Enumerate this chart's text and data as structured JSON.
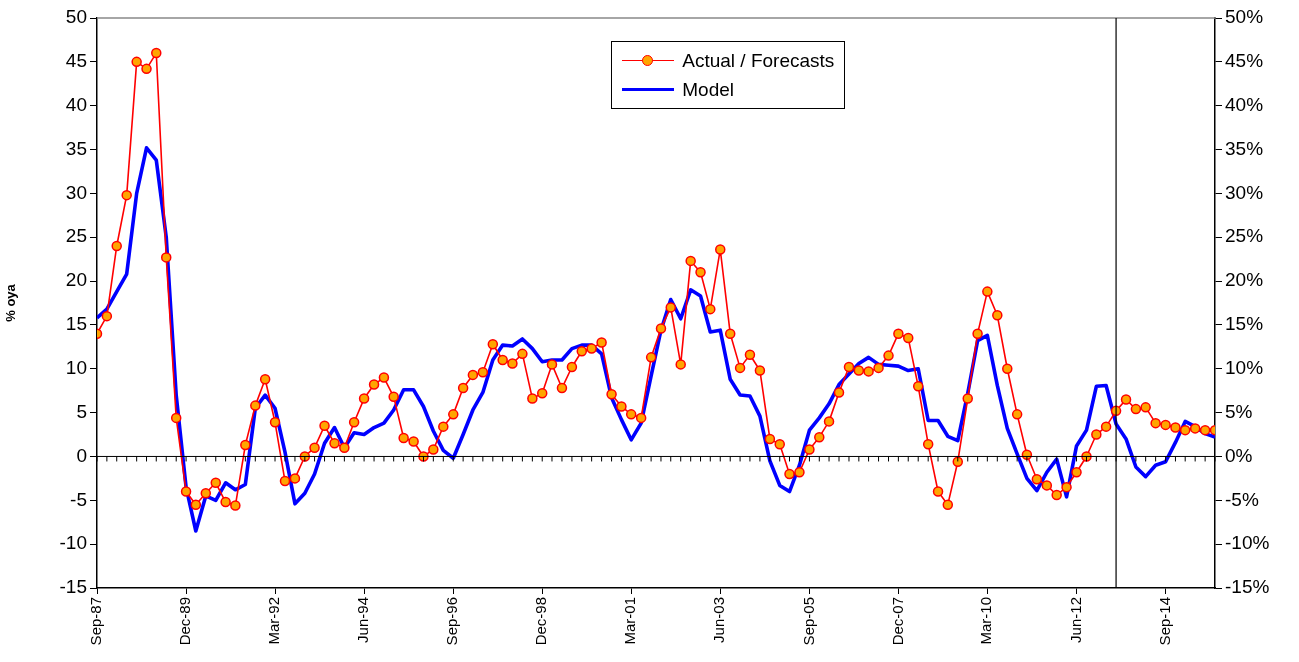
{
  "chart_data": {
    "type": "line",
    "ylabel": "% oya",
    "x": [
      "1987-09",
      "1987-12",
      "1988-03",
      "1988-06",
      "1988-09",
      "1988-12",
      "1989-03",
      "1989-06",
      "1989-09",
      "1989-12",
      "1990-03",
      "1990-06",
      "1990-09",
      "1990-12",
      "1991-03",
      "1991-06",
      "1991-09",
      "1991-12",
      "1992-03",
      "1992-06",
      "1992-09",
      "1992-12",
      "1993-03",
      "1993-06",
      "1993-09",
      "1993-12",
      "1994-03",
      "1994-06",
      "1994-09",
      "1994-12",
      "1995-03",
      "1995-06",
      "1995-09",
      "1995-12",
      "1996-03",
      "1996-06",
      "1996-09",
      "1996-12",
      "1997-03",
      "1997-06",
      "1997-09",
      "1997-12",
      "1998-03",
      "1998-06",
      "1998-09",
      "1998-12",
      "1999-03",
      "1999-06",
      "1999-09",
      "1999-12",
      "2000-03",
      "2000-06",
      "2000-09",
      "2000-12",
      "2001-03",
      "2001-06",
      "2001-09",
      "2001-12",
      "2002-03",
      "2002-06",
      "2002-09",
      "2002-12",
      "2003-03",
      "2003-06",
      "2003-09",
      "2003-12",
      "2004-03",
      "2004-06",
      "2004-09",
      "2004-12",
      "2005-03",
      "2005-06",
      "2005-09",
      "2005-12",
      "2006-03",
      "2006-06",
      "2006-09",
      "2006-12",
      "2007-03",
      "2007-06",
      "2007-09",
      "2007-12",
      "2008-03",
      "2008-06",
      "2008-09",
      "2008-12",
      "2009-03",
      "2009-06",
      "2009-09",
      "2009-12",
      "2010-03",
      "2010-06",
      "2010-09",
      "2010-12",
      "2011-03",
      "2011-06",
      "2011-09",
      "2011-12",
      "2012-03",
      "2012-06",
      "2012-09",
      "2012-12",
      "2013-03",
      "2013-06",
      "2013-09",
      "2013-12",
      "2014-03",
      "2014-06",
      "2014-09",
      "2014-12",
      "2015-03",
      "2015-06",
      "2015-09",
      "2015-12"
    ],
    "series": [
      {
        "name": "Actual / Forecasts",
        "color": "#ff0000",
        "marker": "circle",
        "values": [
          14,
          16,
          24,
          29.8,
          45,
          44.2,
          46,
          22.7,
          4.4,
          -4,
          -5.5,
          -4.2,
          -3,
          -5.2,
          -5.6,
          1.3,
          5.8,
          8.8,
          3.9,
          -2.8,
          -2.5,
          0,
          1,
          3.5,
          1.5,
          1,
          3.9,
          6.6,
          8.2,
          9,
          6.8,
          2.1,
          1.7,
          0,
          0.8,
          3.4,
          4.8,
          7.8,
          9.3,
          9.6,
          12.8,
          11,
          10.6,
          11.7,
          6.6,
          7.2,
          10.5,
          7.8,
          10.2,
          12,
          12.3,
          13,
          7.1,
          5.7,
          4.8,
          4.4,
          11.3,
          14.6,
          17,
          10.5,
          22.3,
          21,
          16.8,
          23.6,
          14,
          10.1,
          11.6,
          9.8,
          2,
          1.4,
          -2,
          -1.8,
          0.8,
          2.2,
          4,
          7.3,
          10.2,
          9.8,
          9.7,
          10.1,
          11.5,
          14,
          13.5,
          8,
          1.4,
          -4,
          -5.5,
          -0.6,
          6.6,
          14,
          18.8,
          16.1,
          10,
          4.8,
          0.2,
          -2.6,
          -3.3,
          -4.4,
          -3.5,
          -1.8,
          0,
          2.5,
          3.4,
          5.2,
          6.5,
          5.4,
          5.6,
          3.8,
          3.6,
          3.3,
          3,
          3.2,
          3,
          3
        ]
      },
      {
        "name": "Model",
        "color": "#0000ff",
        "marker": "none",
        "values": [
          15.8,
          16.8,
          18.8,
          20.8,
          30,
          35.2,
          33.8,
          25,
          7,
          -3.5,
          -8.5,
          -4.5,
          -5,
          -3,
          -3.8,
          -3.2,
          5.5,
          7,
          5.5,
          0.5,
          -5.4,
          -4.2,
          -2,
          1.5,
          3.3,
          1,
          2.7,
          2.5,
          3.3,
          3.8,
          5.3,
          7.6,
          7.6,
          5.7,
          2.9,
          0.7,
          -0.2,
          2.5,
          5.3,
          7.3,
          11,
          12.7,
          12.6,
          13.4,
          12.3,
          10.8,
          11,
          11,
          12.3,
          12.7,
          12.7,
          11.7,
          6.7,
          4.2,
          1.9,
          3.8,
          9.2,
          14.4,
          17.9,
          15.7,
          19,
          18.3,
          14.2,
          14.4,
          8.8,
          7,
          6.9,
          4.6,
          -0.5,
          -3.3,
          -4,
          -1,
          3,
          4.4,
          6,
          8.2,
          9.4,
          10.6,
          11.3,
          10.5,
          10.4,
          10.3,
          9.8,
          10,
          4.1,
          4.1,
          2.3,
          1.8,
          7.2,
          13.2,
          13.8,
          8.1,
          3.2,
          0.3,
          -2.5,
          -3.9,
          -1.8,
          -0.3,
          -4.6,
          1.2,
          3,
          8,
          8.1,
          3.7,
          2,
          -1.2,
          -2.3,
          -1,
          -0.6,
          1.6,
          4,
          3.4,
          2.6,
          2.2
        ]
      }
    ],
    "xlim": [
      "1987-09",
      "2015-12"
    ],
    "xticks": [
      {
        "value": "1987-09",
        "label": "Sep-87"
      },
      {
        "value": "1989-12",
        "label": "Dec-89"
      },
      {
        "value": "1992-03",
        "label": "Mar-92"
      },
      {
        "value": "1994-06",
        "label": "Jun-94"
      },
      {
        "value": "1996-09",
        "label": "Sep-96"
      },
      {
        "value": "1998-12",
        "label": "Dec-98"
      },
      {
        "value": "2001-03",
        "label": "Mar-01"
      },
      {
        "value": "2003-06",
        "label": "Jun-03"
      },
      {
        "value": "2005-09",
        "label": "Sep-05"
      },
      {
        "value": "2007-12",
        "label": "Dec-07"
      },
      {
        "value": "2010-03",
        "label": "Mar-10"
      },
      {
        "value": "2012-06",
        "label": "Jun-12"
      },
      {
        "value": "2014-09",
        "label": "Sep-14"
      }
    ],
    "ylim": [
      -15,
      50
    ],
    "yticks": [
      -15,
      -10,
      -5,
      0,
      5,
      10,
      15,
      20,
      25,
      30,
      35,
      40,
      45,
      50
    ],
    "y2lim": [
      -15,
      50
    ],
    "y2ticks": [
      {
        "value": -15,
        "label": "-15%"
      },
      {
        "value": -10,
        "label": "-10%"
      },
      {
        "value": -5,
        "label": "-5%"
      },
      {
        "value": 0,
        "label": "0%"
      },
      {
        "value": 5,
        "label": "5%"
      },
      {
        "value": 10,
        "label": "10%"
      },
      {
        "value": 15,
        "label": "15%"
      },
      {
        "value": 20,
        "label": "20%"
      },
      {
        "value": 25,
        "label": "25%"
      },
      {
        "value": 30,
        "label": "30%"
      },
      {
        "value": 35,
        "label": "35%"
      },
      {
        "value": 40,
        "label": "40%"
      },
      {
        "value": 45,
        "label": "45%"
      },
      {
        "value": 50,
        "label": "50%"
      }
    ],
    "ref_lines": [
      {
        "axis": "x",
        "value": "2013-06",
        "color": "#000000"
      }
    ],
    "legend": "top"
  }
}
